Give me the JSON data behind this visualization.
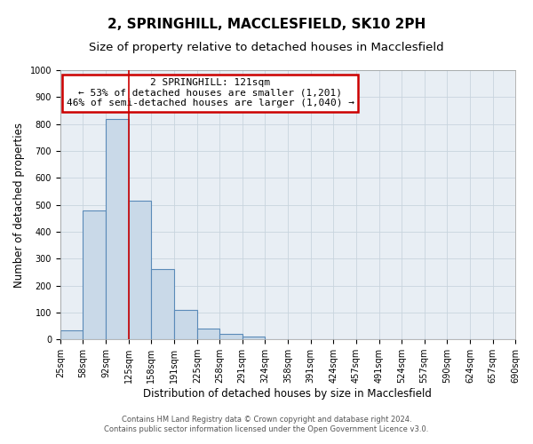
{
  "title": "2, SPRINGHILL, MACCLESFIELD, SK10 2PH",
  "subtitle": "Size of property relative to detached houses in Macclesfield",
  "xlabel": "Distribution of detached houses by size in Macclesfield",
  "ylabel": "Number of detached properties",
  "bin_edges": [
    25,
    58,
    92,
    125,
    158,
    191,
    225,
    258,
    291,
    324,
    358,
    391,
    424,
    457,
    491,
    524,
    557,
    590,
    624,
    657,
    690
  ],
  "bar_heights": [
    35,
    480,
    820,
    515,
    260,
    110,
    40,
    20,
    10,
    0,
    0,
    0,
    0,
    0,
    0,
    0,
    0,
    0,
    0,
    0
  ],
  "bar_color": "#c9d9e8",
  "bar_edge_color": "#5a8ab8",
  "bar_linewidth": 0.8,
  "vline_x": 125,
  "vline_color": "#cc0000",
  "vline_linewidth": 1.2,
  "ylim": [
    0,
    1000
  ],
  "yticks": [
    0,
    100,
    200,
    300,
    400,
    500,
    600,
    700,
    800,
    900,
    1000
  ],
  "annotation_title": "2 SPRINGHILL: 121sqm",
  "annotation_line1": "← 53% of detached houses are smaller (1,201)",
  "annotation_line2": "46% of semi-detached houses are larger (1,040) →",
  "annotation_box_color": "#ffffff",
  "annotation_box_edge_color": "#cc0000",
  "grid_color": "#c8d4de",
  "background_color": "#e8eef4",
  "footer_line1": "Contains HM Land Registry data © Crown copyright and database right 2024.",
  "footer_line2": "Contains public sector information licensed under the Open Government Licence v3.0.",
  "title_fontsize": 11,
  "subtitle_fontsize": 9.5,
  "xlabel_fontsize": 8.5,
  "ylabel_fontsize": 8.5,
  "tick_fontsize": 7,
  "footer_fontsize": 6,
  "ann_fontsize": 8
}
